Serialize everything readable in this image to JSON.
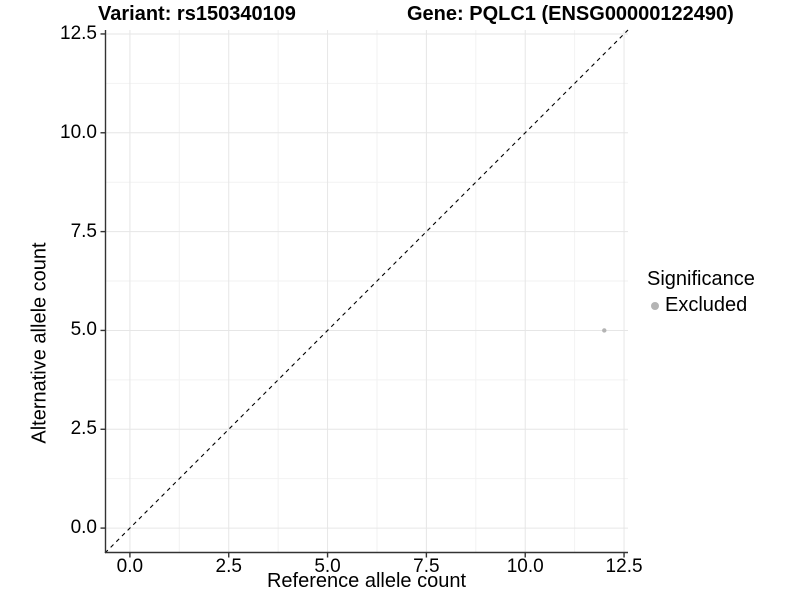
{
  "chart_data": {
    "type": "scatter",
    "title_left": "Variant: rs150340109",
    "title_right": "Gene: PQLC1 (ENSG00000122490)",
    "xlabel": "Reference allele count",
    "ylabel": "Alternative allele count",
    "xlim": [
      -0.63,
      12.6
    ],
    "ylim": [
      -0.63,
      12.6
    ],
    "x_ticks": [
      0.0,
      2.5,
      5.0,
      7.5,
      10.0,
      12.5
    ],
    "y_ticks": [
      0.0,
      2.5,
      5.0,
      7.5,
      10.0,
      12.5
    ],
    "x_tick_labels": [
      "0.0",
      "2.5",
      "5.0",
      "7.5",
      "10.0",
      "12.5"
    ],
    "y_tick_labels": [
      "0.0",
      "2.5",
      "5.0",
      "7.5",
      "10.0",
      "12.5"
    ],
    "minor_gridlines": [
      1.25,
      3.75,
      6.25,
      8.75,
      11.25
    ],
    "grid": true,
    "series": [
      {
        "name": "Excluded",
        "color": "#b4b4b4",
        "point_radius": 2.2,
        "points": [
          {
            "x": 12,
            "y": 5
          }
        ]
      }
    ],
    "reference_line": {
      "type": "identity",
      "equation": "y = x",
      "style": "dashed",
      "color": "#000000"
    },
    "legend": {
      "title": "Significance",
      "position": "right",
      "entries": [
        {
          "label": "Excluded",
          "color": "#b4b4b4"
        }
      ]
    }
  },
  "colors": {
    "background": "#ffffff",
    "axis_line": "#333333",
    "tick_mark": "#333333",
    "grid_major": "#e6e6e6",
    "grid_minor": "#f2f2f2",
    "text": "#000000"
  }
}
